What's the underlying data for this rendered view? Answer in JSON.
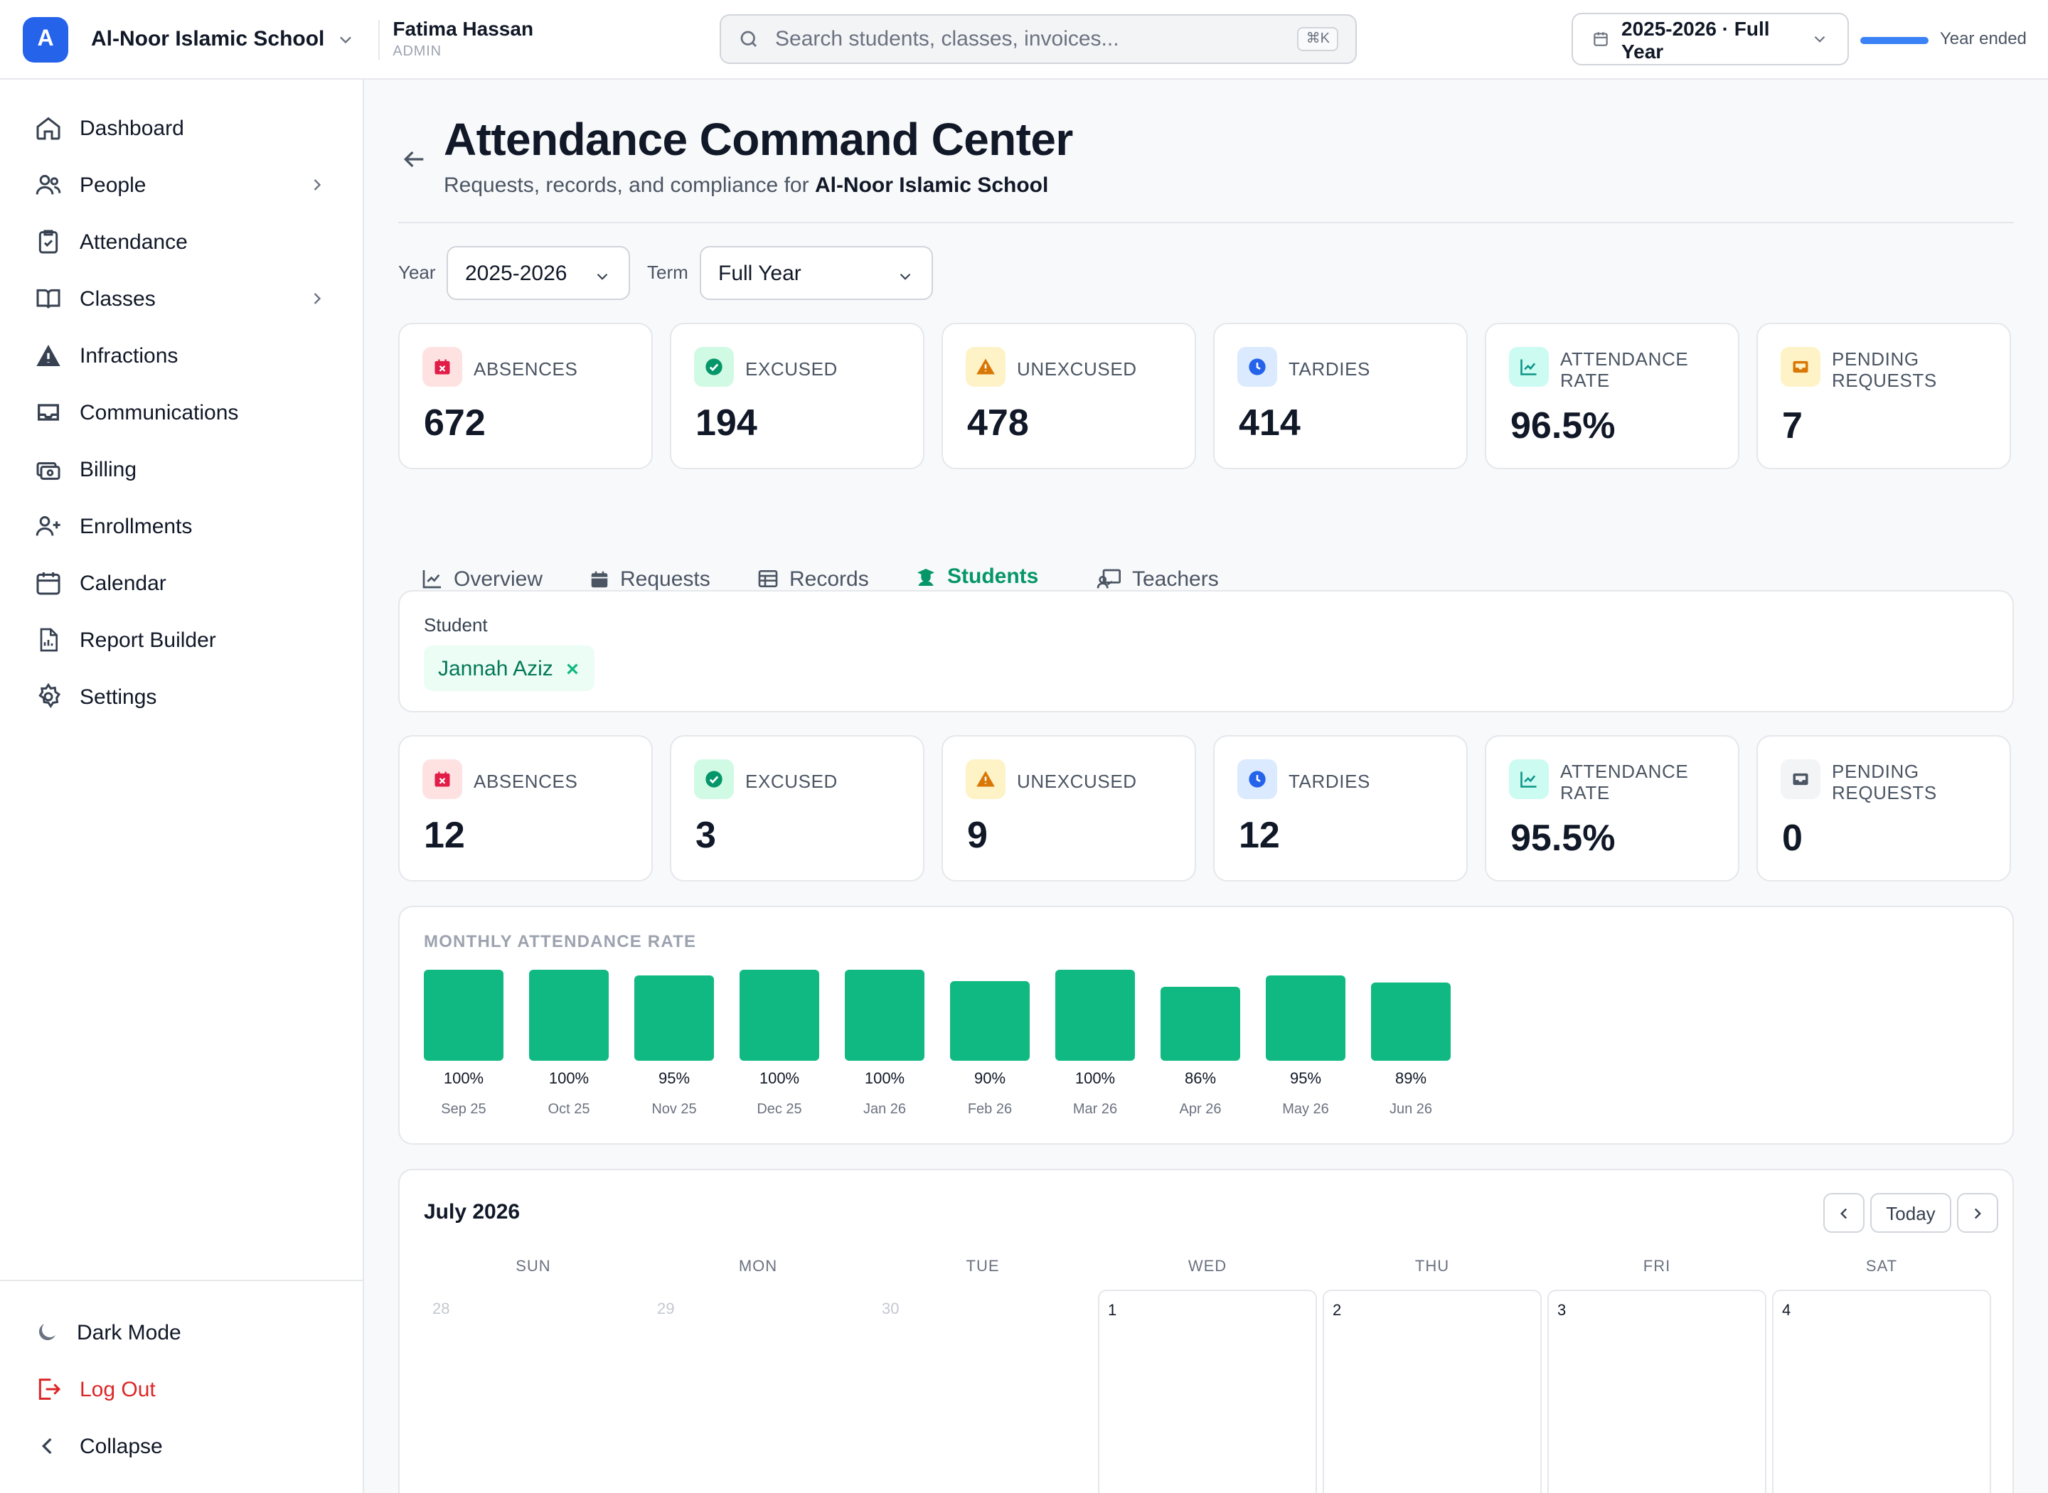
{
  "top": {
    "logo_letter": "A",
    "school_name": "Al-Noor Islamic School",
    "user_name": "Fatima Hassan",
    "user_role": "ADMIN",
    "search_placeholder": "Search students, classes, invoices...",
    "search_shortcut": "⌘K",
    "year_label": "2025-2026 · Full Year",
    "year_status": "Year ended"
  },
  "sidebar": {
    "items": [
      {
        "label": "Dashboard",
        "icon": "home-icon"
      },
      {
        "label": "People",
        "icon": "people-icon",
        "has_children": true
      },
      {
        "label": "Attendance",
        "icon": "clipboard-check-icon"
      },
      {
        "label": "Classes",
        "icon": "book-icon",
        "has_children": true
      },
      {
        "label": "Infractions",
        "icon": "warning-icon"
      },
      {
        "label": "Communications",
        "icon": "inbox-icon"
      },
      {
        "label": "Billing",
        "icon": "money-icon"
      },
      {
        "label": "Enrollments",
        "icon": "user-plus-icon"
      },
      {
        "label": "Calendar",
        "icon": "calendar-icon"
      },
      {
        "label": "Report Builder",
        "icon": "report-icon"
      },
      {
        "label": "Settings",
        "icon": "gear-icon"
      }
    ],
    "footer": {
      "dark_mode": "Dark Mode",
      "logout": "Log Out",
      "collapse": "Collapse"
    }
  },
  "page": {
    "title": "Attendance Command Center",
    "subtitle_prefix": "Requests, records, and compliance for ",
    "subtitle_school": "Al-Noor Islamic School"
  },
  "filters": {
    "year_label": "Year",
    "year_value": "2025-2026",
    "term_label": "Term",
    "term_value": "Full Year"
  },
  "school_stats": [
    {
      "label": "ABSENCES",
      "value": "672",
      "icon": "calendar-x-icon"
    },
    {
      "label": "EXCUSED",
      "value": "194",
      "icon": "check-circle-icon"
    },
    {
      "label": "UNEXCUSED",
      "value": "478",
      "icon": "warning-icon"
    },
    {
      "label": "TARDIES",
      "value": "414",
      "icon": "clock-icon"
    },
    {
      "label": "ATTENDANCE RATE",
      "value": "96.5%",
      "icon": "trend-chart-icon"
    },
    {
      "label": "PENDING REQUESTS",
      "value": "7",
      "icon": "inbox-icon"
    }
  ],
  "tabs": [
    {
      "label": "Overview",
      "icon": "line-chart-icon",
      "active": false
    },
    {
      "label": "Requests",
      "icon": "calendar-icon",
      "active": false
    },
    {
      "label": "Records",
      "icon": "table-icon",
      "active": false
    },
    {
      "label": "Students",
      "icon": "student-icon",
      "active": true
    },
    {
      "label": "Teachers",
      "icon": "teacher-icon",
      "active": false
    }
  ],
  "student_filter": {
    "label": "Student",
    "selected": "Jannah Aziz"
  },
  "student_stats": [
    {
      "label": "ABSENCES",
      "value": "12",
      "icon": "calendar-x-icon"
    },
    {
      "label": "EXCUSED",
      "value": "3",
      "icon": "check-circle-icon"
    },
    {
      "label": "UNEXCUSED",
      "value": "9",
      "icon": "warning-icon"
    },
    {
      "label": "TARDIES",
      "value": "12",
      "icon": "clock-icon"
    },
    {
      "label": "ATTENDANCE RATE",
      "value": "95.5%",
      "icon": "trend-chart-icon"
    },
    {
      "label": "PENDING REQUESTS",
      "value": "0",
      "icon": "inbox-icon"
    }
  ],
  "chart_data": {
    "type": "bar",
    "title": "MONTHLY ATTENDANCE RATE",
    "categories": [
      "Sep 25",
      "Oct 25",
      "Nov 25",
      "Dec 25",
      "Jan 26",
      "Feb 26",
      "Mar 26",
      "Apr 26",
      "May 26",
      "Jun 26"
    ],
    "values": [
      100,
      100,
      95,
      100,
      100,
      90,
      100,
      86,
      95,
      89
    ],
    "value_labels": [
      "100%",
      "100%",
      "95%",
      "100%",
      "100%",
      "90%",
      "100%",
      "86%",
      "95%",
      "89%"
    ],
    "ylim": [
      0,
      100
    ],
    "color": "#10b981",
    "grid": false
  },
  "calendar": {
    "month_label": "July 2026",
    "today_label": "Today",
    "weekdays": [
      "SUN",
      "MON",
      "TUE",
      "WED",
      "THU",
      "FRI",
      "SAT"
    ],
    "days": [
      {
        "num": "28",
        "current": false
      },
      {
        "num": "29",
        "current": false,
        "dot": "#10b981"
      },
      {
        "num": "30",
        "current": false,
        "dot": "#f59e0b"
      },
      {
        "num": "1",
        "current": true
      },
      {
        "num": "2",
        "current": true
      },
      {
        "num": "3",
        "current": true
      },
      {
        "num": "4",
        "current": true
      }
    ]
  },
  "colors": {
    "accent": "#10b981",
    "brand": "#2563eb",
    "danger": "#dc2626"
  }
}
